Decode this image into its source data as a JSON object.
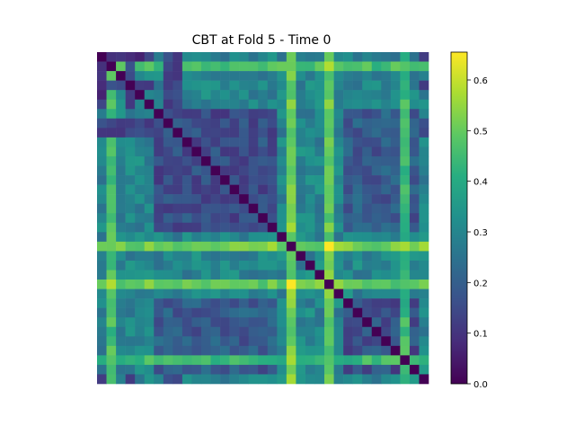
{
  "chart_data": {
    "type": "heatmap",
    "title": "CBT at Fold 5 - Time 0",
    "xlabel": "",
    "ylabel": "",
    "n": 35,
    "colormap": "viridis",
    "clim": [
      0.0,
      0.655
    ],
    "colorbar_ticks": [
      0.0,
      0.1,
      0.2,
      0.3,
      0.4,
      0.5,
      0.6
    ],
    "colorbar_tick_labels": [
      "0.0",
      "0.1",
      "0.2",
      "0.3",
      "0.4",
      "0.5",
      "0.6"
    ],
    "diagonal_value": 0.0,
    "grid": false,
    "matrix_values_note_free": true,
    "bright_rows": {
      "20": 0.52,
      "24": 0.5,
      "1": 0.46,
      "32": 0.44
    },
    "bright_cols": {
      "20": 0.52,
      "24": 0.5,
      "1": 0.46,
      "32": 0.44
    },
    "dark_rows": {
      "0": 0.1,
      "3": 0.14,
      "7": 0.14,
      "8": 0.14
    },
    "peak_cells": [
      {
        "row": 20,
        "col": 24,
        "value": 0.655
      },
      {
        "row": 24,
        "col": 20,
        "value": 0.655
      },
      {
        "row": 24,
        "col": 24,
        "value": 0.0
      },
      {
        "row": 24,
        "col": 1,
        "value": 0.58
      },
      {
        "row": 1,
        "col": 24,
        "value": 0.58
      }
    ],
    "block_regions": [
      {
        "rows": [
          6,
          18
        ],
        "cols": [
          6,
          18
        ],
        "value": 0.16
      },
      {
        "rows": [
          26,
          33
        ],
        "cols": [
          26,
          33
        ],
        "value": 0.16
      },
      {
        "rows": [
          6,
          18
        ],
        "cols": [
          26,
          33
        ],
        "value": 0.19
      },
      {
        "rows": [
          26,
          33
        ],
        "cols": [
          6,
          18
        ],
        "value": 0.19
      }
    ],
    "background_value": 0.3
  }
}
